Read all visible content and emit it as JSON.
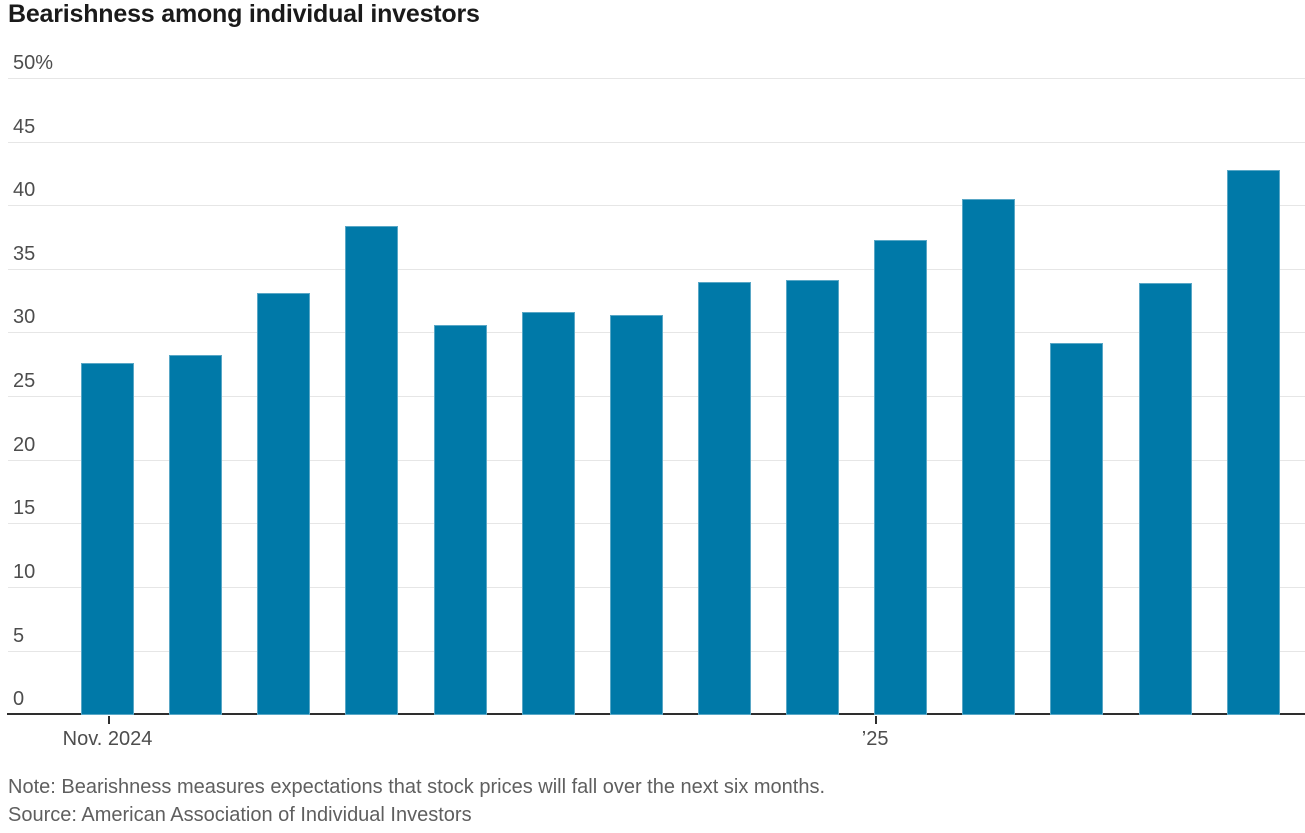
{
  "header": {
    "title": "Bearishness among individual investors"
  },
  "footer": {
    "note": "Note: Bearishness measures expectations that stock prices will fall over the next six months.",
    "source": "Source: American Association of Individual Investors"
  },
  "colors": {
    "bar": "#0079A8",
    "grid": "#E6E6E6",
    "axis": "#2E2E2E",
    "title_text": "#1A1A1A",
    "tick_label_text": "#4D4D4D",
    "note_text": "#5F5F5F"
  },
  "chart_data": {
    "type": "bar",
    "title": "Bearishness among individual investors",
    "values": [
      27.6,
      28.2,
      33.1,
      38.4,
      30.6,
      31.6,
      31.4,
      34.0,
      34.1,
      37.3,
      40.5,
      29.2,
      33.9,
      42.8
    ],
    "unit": "%",
    "ylim": [
      0,
      50
    ],
    "grid": "horizontal",
    "legend": "none",
    "bar_color": "#0079A8",
    "y_ticks": [
      {
        "value": 0,
        "label": "0"
      },
      {
        "value": 5,
        "label": "5"
      },
      {
        "value": 10,
        "label": "10"
      },
      {
        "value": 15,
        "label": "15"
      },
      {
        "value": 20,
        "label": "20"
      },
      {
        "value": 25,
        "label": "25"
      },
      {
        "value": 30,
        "label": "30"
      },
      {
        "value": 35,
        "label": "35"
      },
      {
        "value": 40,
        "label": "40"
      },
      {
        "value": 45,
        "label": "45"
      },
      {
        "value": 50,
        "label": "50%"
      }
    ],
    "x_ticks": [
      {
        "label": "Nov. 2024",
        "bar_index": 0,
        "anchor": "center"
      },
      {
        "label": "’25",
        "bar_index": 9,
        "anchor": "left"
      }
    ]
  }
}
